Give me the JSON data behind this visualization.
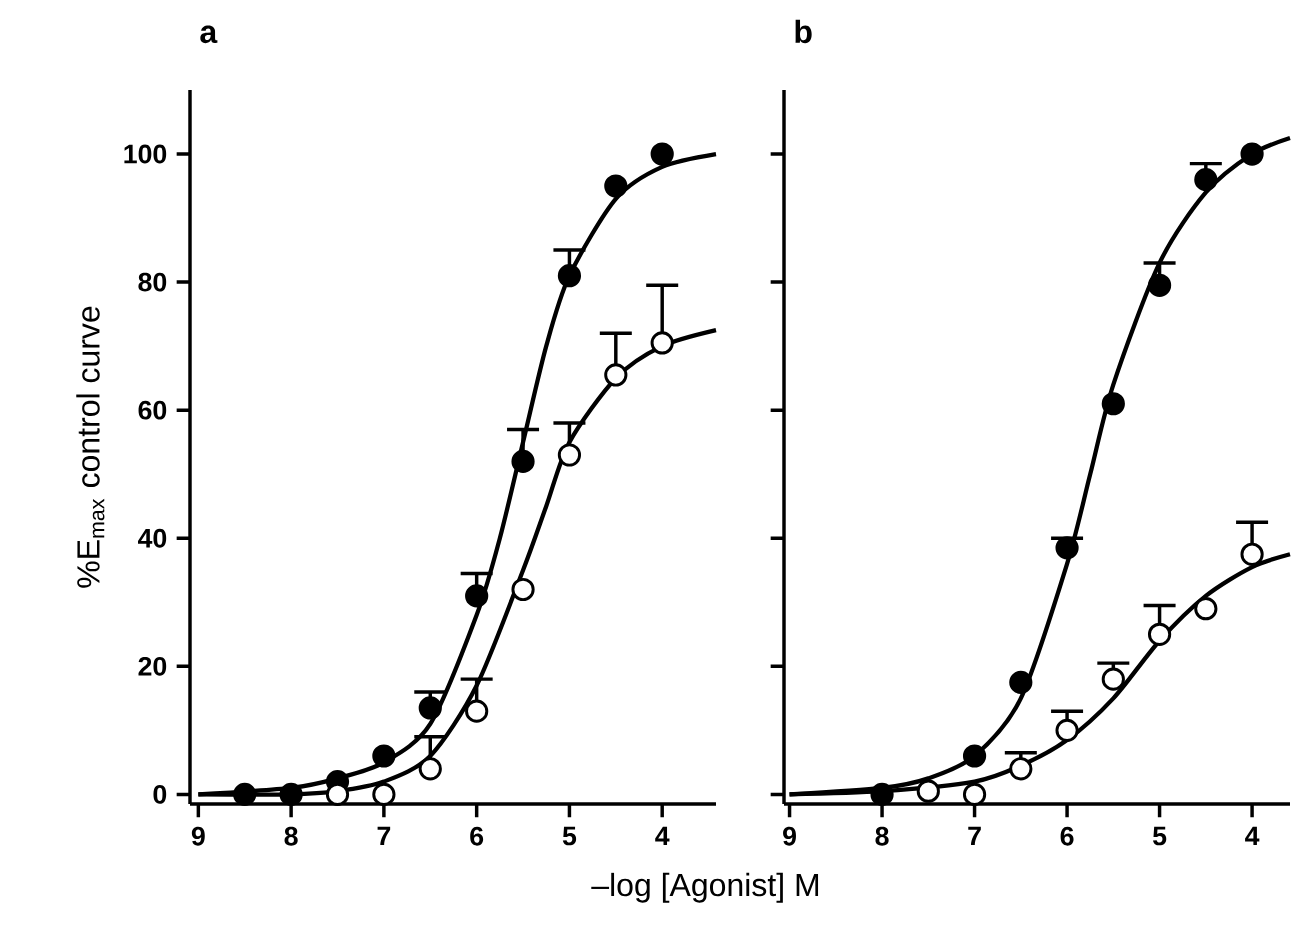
{
  "chart_data": [
    {
      "type": "scatter",
      "title": "a",
      "xlabel": "–log [Agonist] M",
      "ylabel": "%E$_{max}$ control curve",
      "xlim": [
        9.09,
        3.42
      ],
      "ylim": [
        -1.5,
        110
      ],
      "xticks": [
        9,
        8,
        7,
        6,
        5,
        4
      ],
      "yticks": [
        0,
        20,
        40,
        60,
        80,
        100
      ],
      "series": [
        {
          "type": "line",
          "marker": "none",
          "color": "#000000",
          "x": [
            9,
            8,
            7.5,
            7,
            6.5,
            6,
            5.75,
            5.5,
            5.25,
            5,
            4.5,
            4,
            3.42
          ],
          "values": [
            0,
            1,
            2.5,
            5,
            11,
            28,
            40,
            55,
            70,
            81,
            93,
            98,
            100
          ]
        },
        {
          "type": "line",
          "marker": "none",
          "color": "#000000",
          "x": [
            9,
            8,
            7.5,
            7,
            6.5,
            6,
            5.5,
            5.25,
            5,
            4.5,
            4,
            3.42
          ],
          "values": [
            0,
            0,
            0.5,
            2,
            6,
            17,
            35,
            45,
            55,
            65,
            70,
            72.5
          ]
        },
        {
          "marker": "circle",
          "color": "#000000",
          "x": [
            8.5,
            8,
            7.5,
            7,
            6.5,
            6,
            5.5,
            5,
            4.5,
            4
          ],
          "values": [
            0,
            0,
            2,
            6,
            13.5,
            31,
            52,
            81,
            95,
            100
          ],
          "errors": [
            null,
            null,
            null,
            null,
            [
              13.5,
              16
            ],
            [
              31,
              34.5
            ],
            [
              52,
              57
            ],
            [
              81,
              85
            ],
            null,
            null
          ]
        },
        {
          "marker": "circle",
          "color": "#ffffff",
          "x": [
            7.5,
            7,
            6.5,
            6,
            5.5,
            5,
            4.5,
            4
          ],
          "values": [
            0,
            0,
            4,
            13,
            32,
            53,
            65.5,
            70.5
          ],
          "errors": [
            null,
            null,
            [
              4,
              9
            ],
            [
              13,
              18
            ],
            null,
            [
              53,
              58
            ],
            [
              65.5,
              72
            ],
            [
              70.5,
              79.5
            ]
          ]
        }
      ]
    },
    {
      "type": "scatter",
      "title": "b",
      "xlim": [
        9.06,
        3.59
      ],
      "ylim": [
        -1.5,
        110
      ],
      "xticks": [
        9,
        8,
        7,
        6,
        5,
        4
      ],
      "yticks": [
        0,
        20,
        40,
        60,
        80,
        100
      ],
      "tick_labels": "x",
      "series": [
        {
          "type": "line",
          "marker": "none",
          "color": "#000000",
          "x": [
            9,
            8,
            7.5,
            7,
            6.5,
            6,
            5.75,
            5.5,
            5,
            4.5,
            4,
            3.59
          ],
          "values": [
            0,
            1,
            2.5,
            6,
            15,
            36,
            50,
            64,
            83,
            94,
            100,
            102.5
          ]
        },
        {
          "type": "line",
          "marker": "none",
          "color": "#000000",
          "x": [
            9,
            8,
            7,
            6.5,
            6,
            5.5,
            5,
            4.5,
            4,
            3.59
          ],
          "values": [
            0,
            0.5,
            2,
            4.5,
            8.5,
            15,
            24,
            31,
            35.5,
            37.5
          ]
        },
        {
          "marker": "circle",
          "color": "#000000",
          "x": [
            8,
            7,
            6.5,
            6,
            5.5,
            5,
            4.5,
            4
          ],
          "values": [
            0,
            6,
            17.5,
            38.5,
            61,
            79.5,
            96,
            100
          ],
          "errors": [
            null,
            null,
            null,
            [
              38.5,
              40
            ],
            null,
            [
              79.5,
              83
            ],
            [
              96,
              98.5
            ],
            null
          ]
        },
        {
          "marker": "circle",
          "color": "#ffffff",
          "x": [
            7.5,
            7,
            6.5,
            6,
            5.5,
            5,
            4.5,
            4
          ],
          "values": [
            0.5,
            0,
            4,
            10,
            18,
            25,
            29,
            37.5
          ],
          "errors": [
            null,
            null,
            [
              4,
              6.5
            ],
            [
              10,
              13
            ],
            [
              18,
              20.5
            ],
            [
              25,
              29.5
            ],
            null,
            [
              37.5,
              42.5
            ]
          ]
        }
      ]
    }
  ]
}
